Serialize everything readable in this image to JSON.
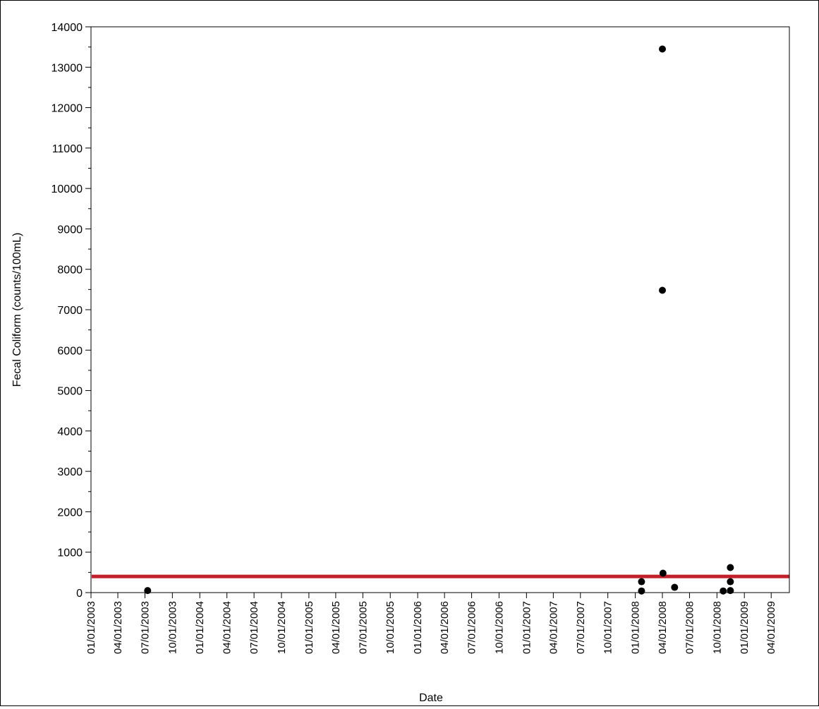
{
  "chart_data": {
    "type": "scatter",
    "title": "",
    "xlabel": "Date",
    "ylabel": "Fecal Coliform (counts/100mL)",
    "ylim": [
      0,
      14000
    ],
    "y_ticks": [
      0,
      1000,
      2000,
      3000,
      4000,
      5000,
      6000,
      7000,
      8000,
      9000,
      10000,
      11000,
      12000,
      13000,
      14000
    ],
    "x_range": [
      "01/01/2003",
      "06/01/2009"
    ],
    "x_ticks": [
      "01/01/2003",
      "04/01/2003",
      "07/01/2003",
      "10/01/2003",
      "01/01/2004",
      "04/01/2004",
      "07/01/2004",
      "10/01/2004",
      "01/01/2005",
      "04/01/2005",
      "07/01/2005",
      "10/01/2005",
      "01/01/2006",
      "04/01/2006",
      "07/01/2006",
      "10/01/2006",
      "01/01/2007",
      "04/01/2007",
      "07/01/2007",
      "10/01/2007",
      "01/01/2008",
      "04/01/2008",
      "07/01/2008",
      "10/01/2008",
      "01/01/2009",
      "04/01/2009"
    ],
    "grid": false,
    "reference_line": {
      "y": 400,
      "color": "#c0202a"
    },
    "marker_color": "#000000",
    "series": [
      {
        "points": [
          {
            "x": "07/10/2003",
            "y": 50
          },
          {
            "x": "01/22/2008",
            "y": 270
          },
          {
            "x": "01/22/2008",
            "y": 40
          },
          {
            "x": "04/01/2008",
            "y": 13450
          },
          {
            "x": "04/01/2008",
            "y": 7480
          },
          {
            "x": "04/03/2008",
            "y": 480
          },
          {
            "x": "05/12/2008",
            "y": 130
          },
          {
            "x": "10/22/2008",
            "y": 40
          },
          {
            "x": "11/15/2008",
            "y": 620
          },
          {
            "x": "11/15/2008",
            "y": 270
          },
          {
            "x": "11/15/2008",
            "y": 50
          }
        ]
      }
    ]
  }
}
